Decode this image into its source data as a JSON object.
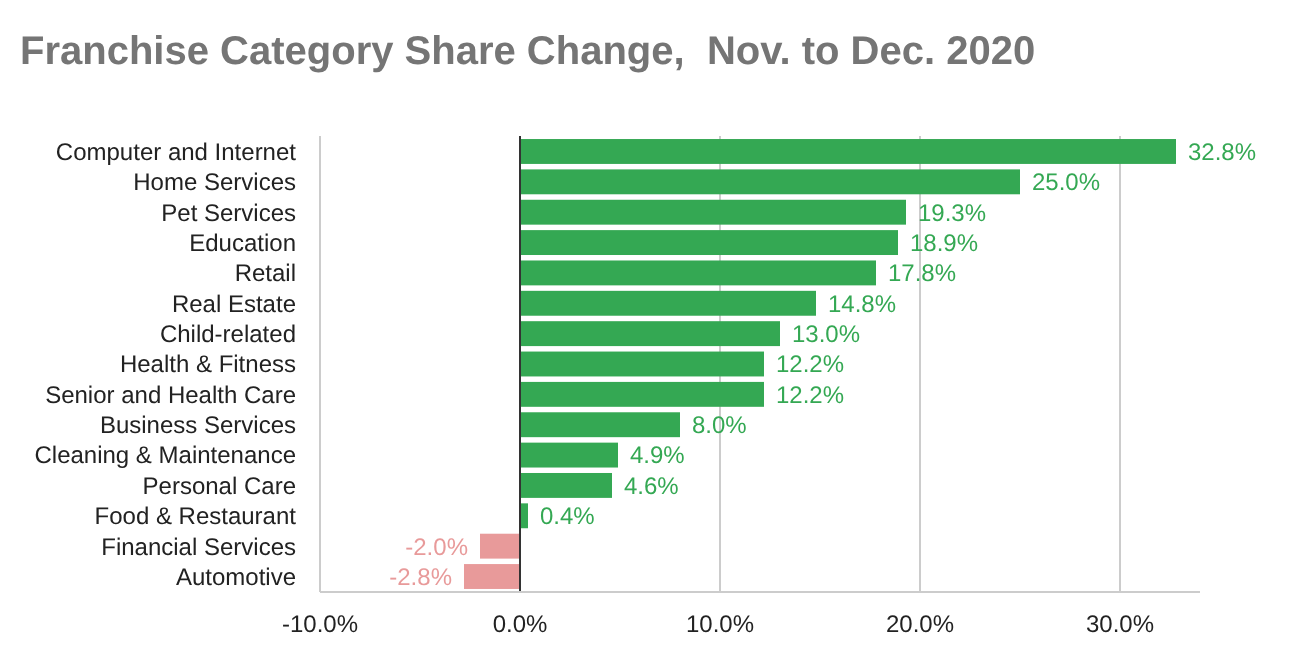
{
  "chart_data": {
    "type": "bar",
    "orientation": "horizontal",
    "title": "Franchise Category Share Change,  Nov. to Dec. 2020",
    "categories": [
      "Computer and Internet",
      "Home Services",
      "Pet Services",
      "Education",
      "Retail",
      "Real Estate",
      "Child-related",
      "Health & Fitness",
      "Senior and Health Care",
      "Business Services",
      "Cleaning & Maintenance",
      "Personal Care",
      "Food & Restaurant",
      "Financial Services",
      "Automotive"
    ],
    "values": [
      32.8,
      25.0,
      19.3,
      18.9,
      17.8,
      14.8,
      13.0,
      12.2,
      12.2,
      8.0,
      4.9,
      4.6,
      0.4,
      -2.0,
      -2.8
    ],
    "value_labels": [
      "32.8%",
      "25.0%",
      "19.3%",
      "18.9%",
      "17.8%",
      "14.8%",
      "13.0%",
      "12.2%",
      "12.2%",
      "8.0%",
      "4.9%",
      "4.6%",
      "0.4%",
      "-2.0%",
      "-2.8%"
    ],
    "colors": [
      "#34a853",
      "#34a853",
      "#34a853",
      "#34a853",
      "#34a853",
      "#34a853",
      "#34a853",
      "#34a853",
      "#34a853",
      "#34a853",
      "#34a853",
      "#34a853",
      "#34a853",
      "#e89a9a",
      "#e89a9a"
    ],
    "xlim": [
      -10,
      34
    ],
    "xticks": [
      {
        "value": -10,
        "label": "-10.0%"
      },
      {
        "value": 0,
        "label": "0.0%"
      },
      {
        "value": 10,
        "label": "10.0%"
      },
      {
        "value": 20,
        "label": "20.0%"
      },
      {
        "value": 30,
        "label": "30.0%"
      }
    ],
    "grid": "x"
  }
}
